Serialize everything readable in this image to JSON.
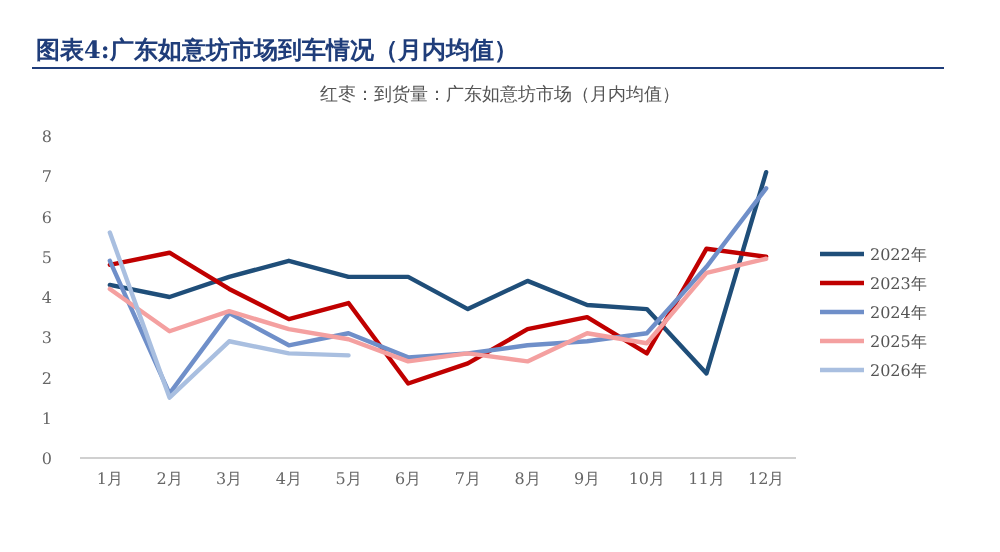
{
  "chart_data": {
    "type": "line",
    "title": "图表4:广东如意坊市场到车情况（月内均值）",
    "subtitle": "红枣：到货量：广东如意坊市场（月内均值）",
    "categories": [
      "1月",
      "2月",
      "3月",
      "4月",
      "5月",
      "6月",
      "7月",
      "8月",
      "9月",
      "10月",
      "11月",
      "12月"
    ],
    "series": [
      {
        "name": "2022年",
        "color": "#1f4e79",
        "values": [
          4.3,
          4.0,
          4.5,
          4.9,
          4.5,
          4.5,
          3.7,
          4.4,
          3.8,
          3.7,
          2.1,
          7.1
        ]
      },
      {
        "name": "2023年",
        "color": "#c00000",
        "values": [
          4.8,
          5.1,
          4.2,
          3.45,
          3.85,
          1.85,
          2.35,
          3.2,
          3.5,
          2.6,
          5.2,
          5.0
        ]
      },
      {
        "name": "2024年",
        "color": "#6f8fc9",
        "values": [
          4.9,
          1.6,
          3.6,
          2.8,
          3.1,
          2.5,
          2.6,
          2.8,
          2.9,
          3.1,
          4.75,
          6.7
        ]
      },
      {
        "name": "2025年",
        "color": "#f4a0a0",
        "values": [
          4.2,
          3.15,
          3.65,
          3.2,
          2.95,
          2.4,
          2.6,
          2.4,
          3.1,
          2.85,
          4.6,
          4.95
        ]
      },
      {
        "name": "2026年",
        "color": "#a9bfe0",
        "values": [
          5.6,
          1.5,
          2.9,
          2.6,
          2.55,
          null,
          null,
          null,
          null,
          null,
          null,
          null
        ]
      }
    ],
    "ylim": [
      0,
      8
    ],
    "yticks": [
      0,
      1,
      2,
      3,
      4,
      5,
      6,
      7,
      8
    ],
    "legend": "right"
  }
}
